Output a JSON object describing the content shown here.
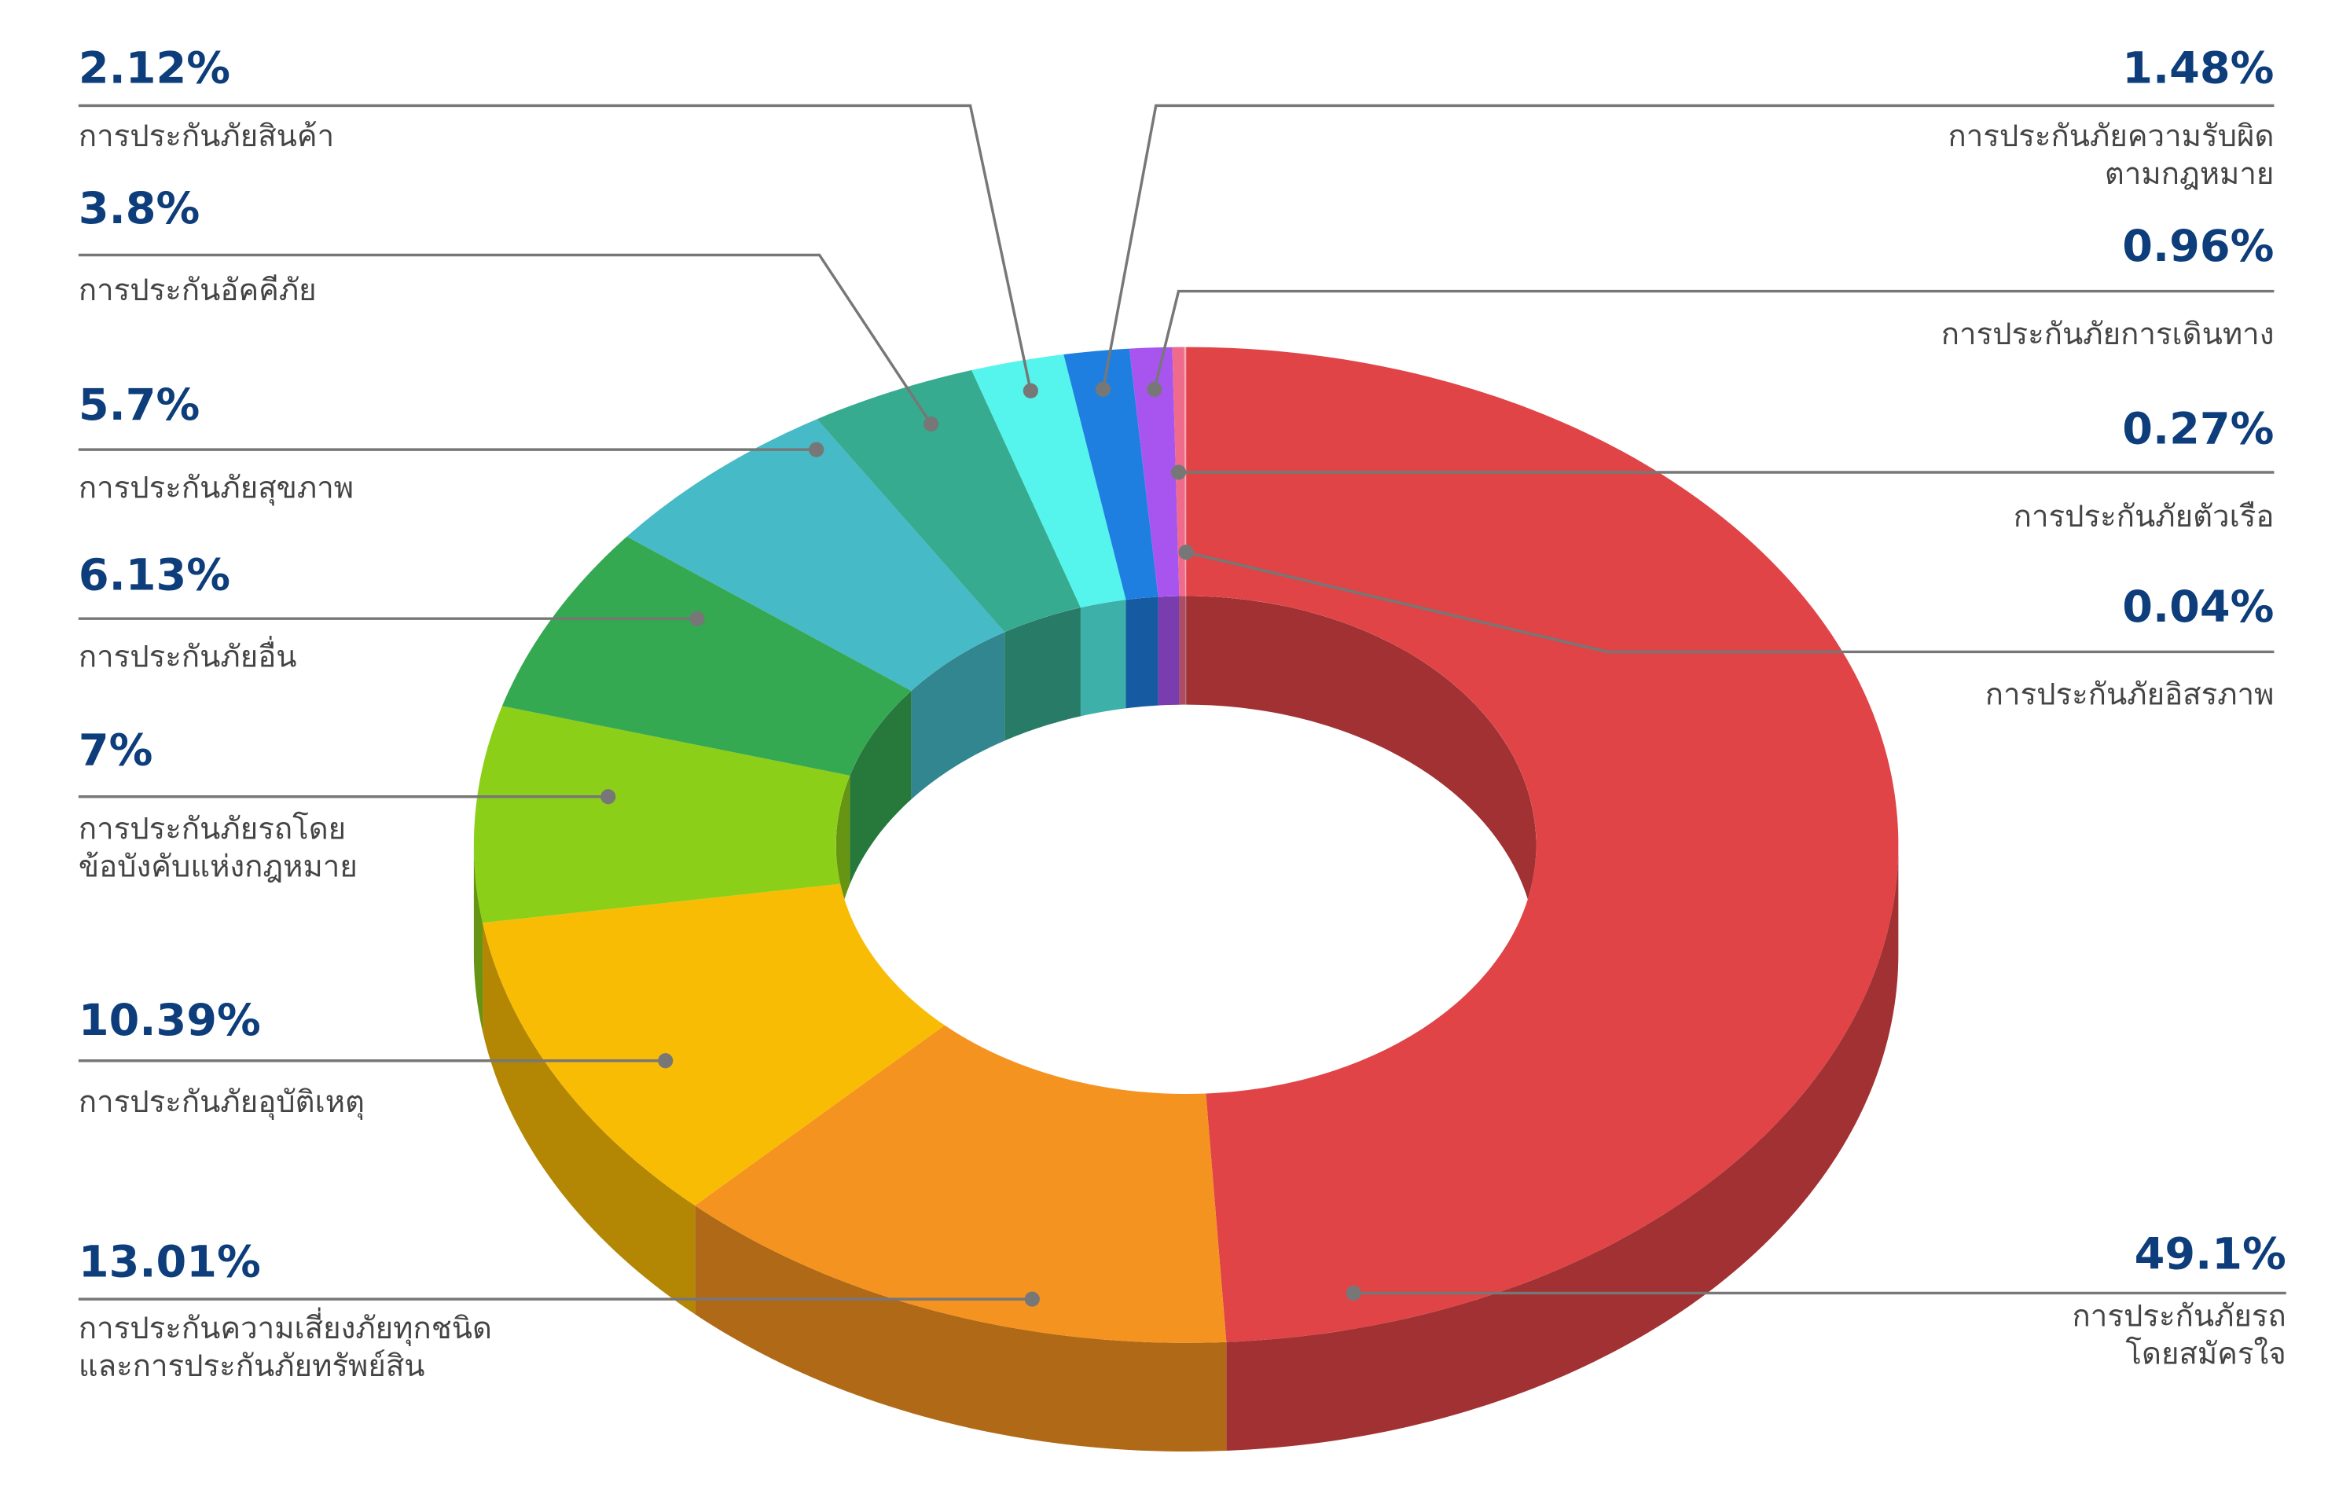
{
  "chart_data": {
    "type": "donut3d",
    "categories": [
      "การประกันภัยรถ\nโดยสมัครใจ",
      "การประกันความเสี่ยงภัยทุกชนิด\nและการประกันภัยทรัพย์สิน",
      "การประกันภัยอุบัติเหตุ",
      "การประกันภัยรถโดย\nข้อบังคับแห่งกฎหมาย",
      "การประกันภัยอื่น",
      "การประกันภัยสุขภาพ",
      "การประกันอัคคีภัย",
      "การประกันภัยสินค้า",
      "การประกันภัยความรับผิด\nตามกฎหมาย",
      "การประกันภัยการเดินทาง",
      "การประกันภัยตัวเรือ",
      "การประกันภัยอิสรภาพ"
    ],
    "values": [
      49.1,
      13.01,
      10.39,
      7,
      6.13,
      5.7,
      3.8,
      2.12,
      1.48,
      0.96,
      0.27,
      0.04
    ],
    "value_labels": [
      "49.1%",
      "13.01%",
      "10.39%",
      "7%",
      "6.13%",
      "5.7%",
      "3.8%",
      "2.12%",
      "1.48%",
      "0.96%",
      "0.27%",
      "0.04%"
    ],
    "colors": [
      "#e04446",
      "#f59320",
      "#f9bc05",
      "#8ccf19",
      "#35a852",
      "#46bac6",
      "#37ab8f",
      "#55f4ec",
      "#1e7fe0",
      "#a855f0",
      "#f06b8b",
      "#f7a8b8"
    ]
  }
}
